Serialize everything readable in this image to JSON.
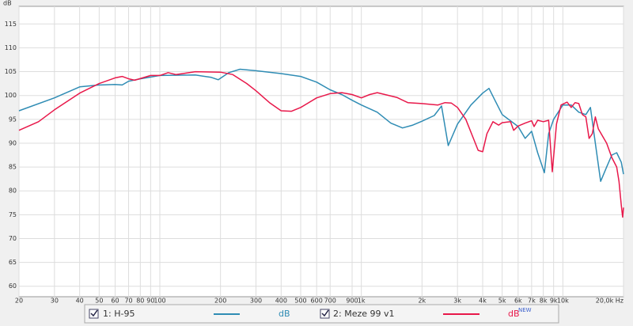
{
  "chart_data": {
    "type": "line",
    "y_label": "dB",
    "xlog": true,
    "grid": true,
    "xlim": [
      20,
      20000
    ],
    "ylim": [
      57.8,
      118.7
    ],
    "yticks": [
      60,
      65,
      70,
      75,
      80,
      85,
      90,
      95,
      100,
      105,
      110,
      115
    ],
    "xticks": [
      20,
      30,
      40,
      50,
      60,
      70,
      80,
      90,
      100,
      200,
      300,
      400,
      500,
      600,
      700,
      900,
      {
        "value": 1000,
        "label": "1k"
      },
      {
        "value": 2000,
        "label": "2k"
      },
      {
        "value": 3000,
        "label": "3k"
      },
      {
        "value": 4000,
        "label": "4k"
      },
      {
        "value": 5000,
        "label": "5k"
      },
      {
        "value": 6000,
        "label": "6k"
      },
      {
        "value": 7000,
        "label": "7k"
      },
      {
        "value": 8000,
        "label": "8k"
      },
      {
        "value": 9000,
        "label": "9k"
      },
      {
        "value": 10000,
        "label": "10k"
      },
      {
        "value": 20000,
        "label": "20,0k Hz"
      }
    ],
    "series": [
      {
        "name": "1: H-95",
        "unit": "dB",
        "color": "#2f8cb4",
        "x": [
          20,
          30,
          40,
          50,
          60,
          65,
          70,
          80,
          100,
          150,
          180,
          195,
          220,
          250,
          300,
          400,
          500,
          600,
          700,
          800,
          900,
          1000,
          1200,
          1400,
          1600,
          1800,
          2000,
          2300,
          2500,
          2700,
          3000,
          3500,
          4000,
          4300,
          4600,
          5000,
          6000,
          6500,
          7000,
          7500,
          8100,
          8500,
          9000,
          10000,
          11000,
          12000,
          13000,
          13700,
          14500,
          15400,
          16500,
          17500,
          18500,
          19500,
          20000
        ],
        "values": [
          96.8,
          99.5,
          101.8,
          102.2,
          102.3,
          102.2,
          103,
          103.5,
          104.2,
          104.3,
          103.8,
          103.3,
          104.8,
          105.5,
          105.2,
          104.6,
          104,
          102.8,
          101.2,
          100.2,
          99,
          98,
          96.5,
          94.2,
          93.2,
          93.8,
          94.6,
          95.8,
          97.8,
          89.5,
          94,
          98,
          100.5,
          101.5,
          99,
          96,
          93.5,
          91,
          92.5,
          88,
          83.8,
          92,
          95,
          98,
          98,
          96.5,
          96,
          97.5,
          90,
          82,
          85,
          87.5,
          88,
          86,
          83.5
        ]
      },
      {
        "name": "2: Meze 99 v1",
        "unit": "dB",
        "unit_sup": "NEW",
        "color": "#e8184a",
        "x": [
          20,
          25,
          30,
          40,
          50,
          60,
          65,
          70,
          75,
          90,
          100,
          110,
          120,
          130,
          150,
          200,
          230,
          270,
          300,
          350,
          400,
          450,
          500,
          600,
          700,
          800,
          900,
          1000,
          1100,
          1200,
          1500,
          1700,
          2000,
          2400,
          2600,
          2800,
          3000,
          3300,
          3600,
          3800,
          4000,
          4200,
          4500,
          4800,
          5000,
          5500,
          5700,
          6000,
          6500,
          7000,
          7200,
          7500,
          8000,
          8500,
          8860,
          9300,
          9800,
          10500,
          11000,
          11500,
          12000,
          12500,
          13000,
          13500,
          14000,
          14500,
          15000,
          16500,
          17500,
          18500,
          19000,
          19500,
          19800,
          20000
        ],
        "values": [
          92.7,
          94.5,
          97,
          100.5,
          102.5,
          103.7,
          104,
          103.5,
          103.2,
          104.2,
          104.2,
          104.8,
          104.4,
          104.6,
          105,
          104.9,
          104.4,
          102.5,
          101,
          98.5,
          96.8,
          96.7,
          97.5,
          99.5,
          100.4,
          100.6,
          100.2,
          99.5,
          100.2,
          100.6,
          99.6,
          98.5,
          98.3,
          98,
          98.5,
          98.4,
          97.5,
          95,
          91,
          88.5,
          88.2,
          92,
          94.5,
          93.8,
          94.3,
          94.5,
          92.7,
          93.6,
          94.2,
          94.7,
          93.5,
          94.8,
          94.5,
          94.8,
          84,
          94,
          98,
          98.6,
          97.5,
          98.5,
          98.3,
          96,
          95.5,
          91,
          92,
          95.5,
          93,
          90,
          87,
          85,
          82,
          77,
          74.5,
          76.5
        ]
      }
    ]
  }
}
